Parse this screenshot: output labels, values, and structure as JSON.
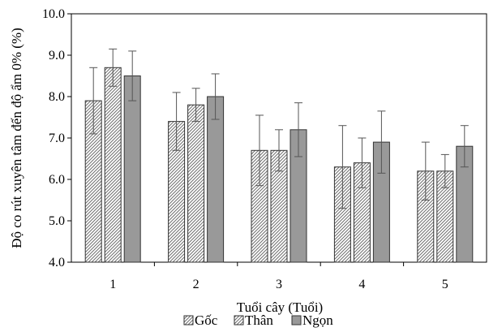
{
  "chart_data": {
    "type": "bar",
    "xlabel": "Tuổi cây (Tuổi)",
    "ylabel": "Độ co rút xuyên tâm đến độ ẩm 0% (%)",
    "ylim": [
      4.0,
      10.0
    ],
    "yticks": [
      "4.0",
      "5.0",
      "6.0",
      "7.0",
      "8.0",
      "9.0",
      "10.0"
    ],
    "categories": [
      "1",
      "2",
      "3",
      "4",
      "5"
    ],
    "legend_position": "bottom",
    "series": [
      {
        "name": "Gốc",
        "pattern": "hatch",
        "values": [
          7.9,
          7.4,
          6.7,
          6.3,
          6.2
        ],
        "err_low": [
          7.1,
          6.7,
          5.85,
          5.3,
          5.5
        ],
        "err_high": [
          8.7,
          8.1,
          7.55,
          7.3,
          6.9
        ]
      },
      {
        "name": "Thân",
        "pattern": "hatch",
        "values": [
          8.7,
          7.8,
          6.7,
          6.4,
          6.2
        ],
        "err_low": [
          8.25,
          7.4,
          6.2,
          5.8,
          5.8
        ],
        "err_high": [
          9.15,
          8.2,
          7.2,
          7.0,
          6.6
        ]
      },
      {
        "name": "Ngọn",
        "pattern": "solid",
        "color": "#999999",
        "values": [
          8.5,
          8.0,
          7.2,
          6.9,
          6.8
        ],
        "err_low": [
          7.9,
          7.45,
          6.55,
          6.15,
          6.3
        ],
        "err_high": [
          9.1,
          8.55,
          7.85,
          7.65,
          7.3
        ]
      }
    ]
  }
}
